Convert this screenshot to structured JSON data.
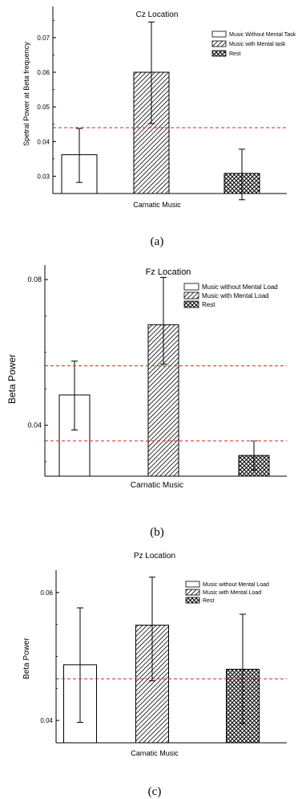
{
  "colors": {
    "axis": "#000000",
    "reference_line": "#dd2222",
    "bar_stroke": "#000000",
    "bar_fill": "#ffffff"
  },
  "panels": [
    {
      "caption": "(a)",
      "chart_data": {
        "type": "bar",
        "title": "Cz Location",
        "xlabel": "Carnatic Music",
        "ylabel": "Spetral Power at Beta frequency",
        "ylim": [
          0.025,
          0.079
        ],
        "yticks": [
          0.03,
          0.04,
          0.05,
          0.06,
          0.07
        ],
        "yticklabels": [
          "0.03",
          "0.04",
          "0.05",
          "0.06",
          "0.07"
        ],
        "minor_ticks": true,
        "grid": false,
        "legend_position": "top-right",
        "series": [
          {
            "name": "Music Without Mental Task",
            "pattern": "none",
            "value": 0.0362,
            "error": [
              0.0282,
              0.0438
            ]
          },
          {
            "name": "Music with Mental task",
            "pattern": "diagonal",
            "value": 0.06,
            "error": [
              0.0452,
              0.0745
            ]
          },
          {
            "name": "Rest",
            "pattern": "crosshatch",
            "value": 0.0308,
            "error": [
              0.0232,
              0.0378
            ]
          }
        ],
        "reference_lines": [
          0.044
        ]
      }
    },
    {
      "caption": "(b)",
      "chart_data": {
        "type": "bar",
        "title": "Fz Location",
        "xlabel": "Carnatic Music",
        "ylabel": "Beta Power",
        "ylim": [
          0.026,
          0.084
        ],
        "yticks": [
          0.04,
          0.08
        ],
        "yticklabels": [
          "0.04",
          "0.08"
        ],
        "minor_ticks": true,
        "grid": false,
        "legend_position": "top-right",
        "series": [
          {
            "name": "Music without Mental Load",
            "pattern": "none",
            "value": 0.0483,
            "error": [
              0.0387,
              0.0576
            ]
          },
          {
            "name": "Music with Mental Load",
            "pattern": "diagonal",
            "value": 0.0676,
            "error": [
              0.0568,
              0.0806
            ]
          },
          {
            "name": "Rest",
            "pattern": "crosshatch",
            "value": 0.0317,
            "error": [
              0.0277,
              0.0357
            ]
          }
        ],
        "reference_lines": [
          0.0563,
          0.0357
        ]
      }
    },
    {
      "caption": "(c)",
      "chart_data": {
        "type": "bar",
        "title": "Pz Location",
        "xlabel": "Carnatic Music",
        "ylabel": "Beta Power",
        "ylim": [
          0.0365,
          0.0635
        ],
        "yticks": [
          0.04,
          0.06
        ],
        "yticklabels": [
          "0.04",
          "0.06"
        ],
        "minor_ticks": true,
        "grid": false,
        "legend_position": "top-right",
        "series": [
          {
            "name": "Music without Mental Load",
            "pattern": "none",
            "value": 0.0487,
            "error": [
              0.0397,
              0.0576
            ]
          },
          {
            "name": "Music with Mental Load",
            "pattern": "diagonal",
            "value": 0.0549,
            "error": [
              0.0462,
              0.0624
            ]
          },
          {
            "name": "Rest",
            "pattern": "crosshatch",
            "value": 0.048,
            "error": [
              0.0395,
              0.0566
            ]
          }
        ],
        "reference_lines": [
          0.0465
        ]
      }
    }
  ]
}
